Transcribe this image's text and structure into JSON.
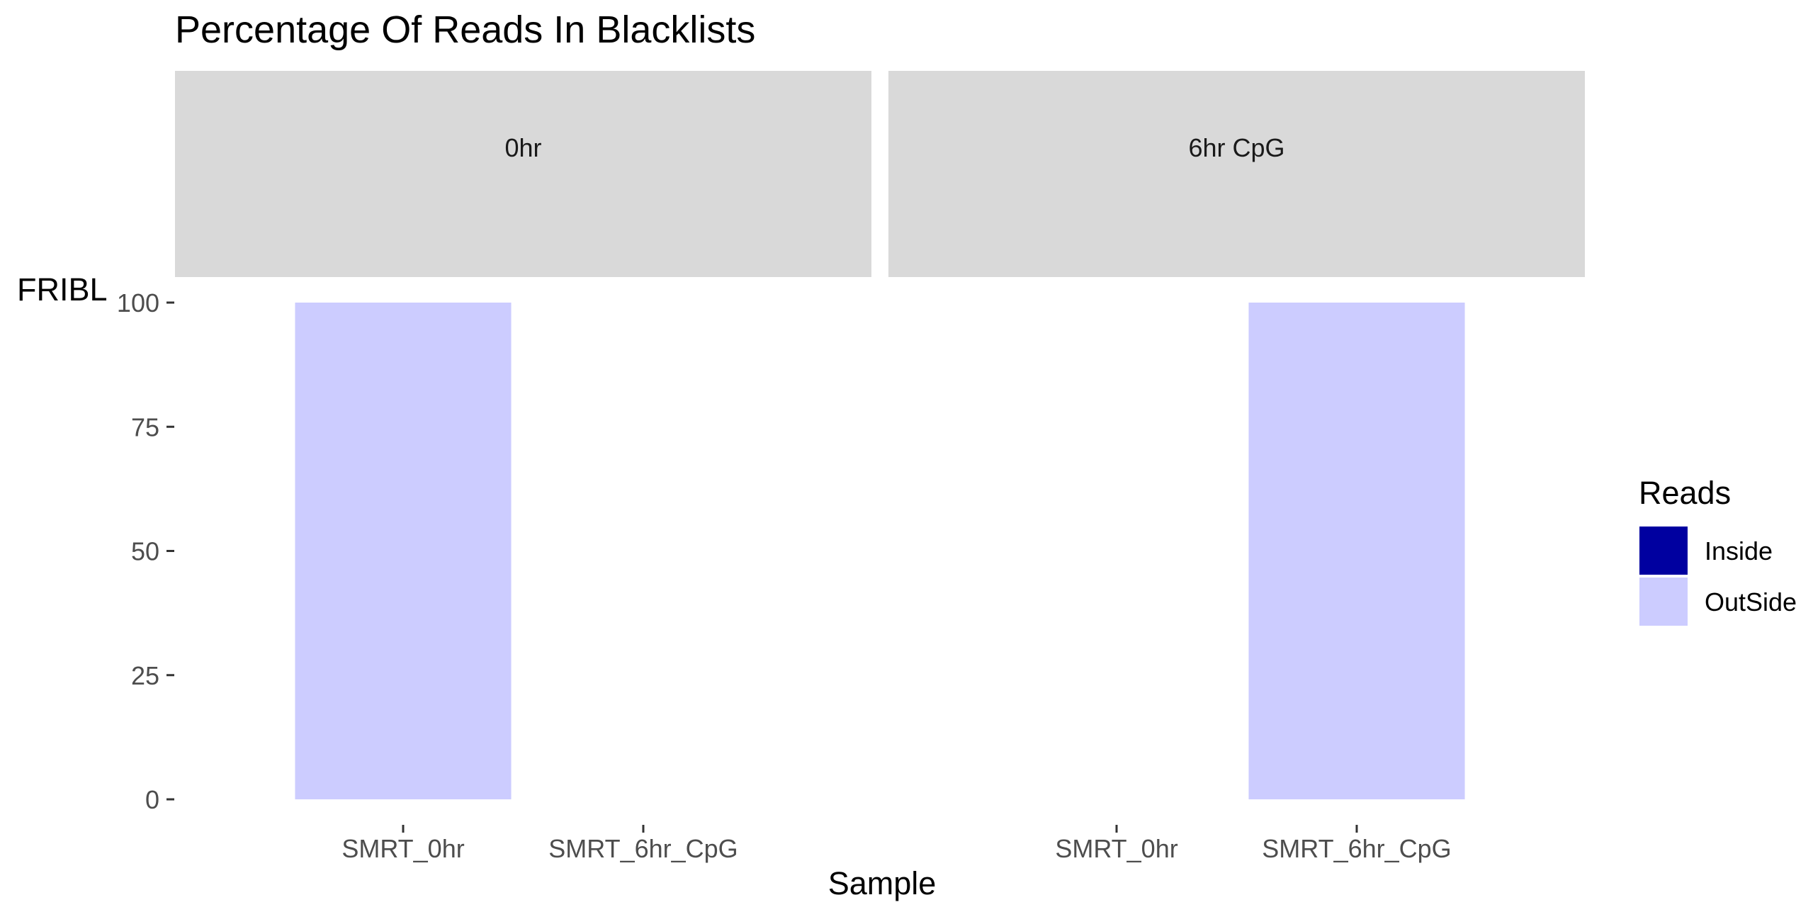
{
  "chart_data": {
    "type": "bar",
    "title": "Percentage Of Reads In Blacklists",
    "xlabel": "Sample",
    "ylabel": "FRIBL",
    "ylim": [
      0,
      100
    ],
    "yticks": [
      "0",
      "25",
      "50",
      "75",
      "100"
    ],
    "grid": false,
    "stacked": true,
    "legend": {
      "title": "Reads",
      "position": "right",
      "entries": [
        {
          "name": "Inside",
          "color": "#0000A0"
        },
        {
          "name": "OutSide",
          "color": "#CCCCFF"
        }
      ]
    },
    "facets": [
      {
        "label": "0hr",
        "categories": [
          "SMRT_0hr",
          "SMRT_6hr_CpG"
        ],
        "series": [
          {
            "name": "Inside",
            "values": [
              0,
              0
            ]
          },
          {
            "name": "OutSide",
            "values": [
              100,
              0
            ]
          }
        ]
      },
      {
        "label": "6hr CpG",
        "categories": [
          "SMRT_0hr",
          "SMRT_6hr_CpG"
        ],
        "series": [
          {
            "name": "Inside",
            "values": [
              0,
              0
            ]
          },
          {
            "name": "OutSide",
            "values": [
              0,
              100
            ]
          }
        ]
      }
    ]
  }
}
